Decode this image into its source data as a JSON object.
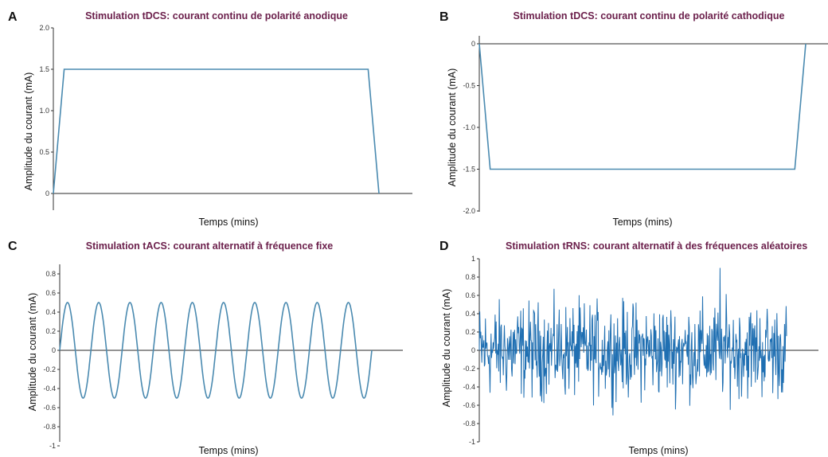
{
  "colors": {
    "title": "#6b1f4b",
    "line": "#4a8ab0",
    "noise": "#1f6fb2",
    "axis": "#333333",
    "zero": "#555555"
  },
  "chart_data": [
    {
      "letter": "A",
      "type": "line",
      "title": "Stimulation tDCS: courant continu de polarité anodique",
      "xlabel": "Temps (mins)",
      "ylabel": "Amplitude du courant (mA)",
      "ylim": [
        0,
        2.0
      ],
      "yticks": [
        "0",
        "0.5",
        "1.0",
        "1.5",
        "2.0"
      ],
      "x": [
        0,
        0.5,
        14.5,
        15
      ],
      "y": [
        0,
        1.5,
        1.5,
        0
      ]
    },
    {
      "letter": "B",
      "type": "line",
      "title": "Stimulation tDCS: courant continu de polarité cathodique",
      "xlabel": "Temps (mins)",
      "ylabel": "Amplitude du courant (mA)",
      "ylim": [
        -2.0,
        0
      ],
      "yticks": [
        "0",
        "-0.5",
        "-1.0",
        "-1.5",
        "-2.0"
      ],
      "x": [
        0,
        0.5,
        14.5,
        15
      ],
      "y": [
        0,
        -1.5,
        -1.5,
        0
      ]
    },
    {
      "letter": "C",
      "type": "line",
      "title": "Stimulation tACS: courant  alternatif à fréquence fixe",
      "xlabel": "Temps (mins)",
      "ylabel": "Amplitude du courant (mA)",
      "ylim": [
        -1,
        1
      ],
      "yticks": [
        "0.8",
        "0.6",
        "0.4",
        "0.2",
        "0",
        "-0.2",
        "-0.4",
        "-0.6",
        "-0.8",
        "-1"
      ],
      "amplitude": 0.5,
      "cycles": 10
    },
    {
      "letter": "D",
      "type": "line",
      "title": "Stimulation tRNS: courant  alternatif à des fréquences aléatoires",
      "xlabel": "Temps (mins)",
      "ylabel": "Amplitude du courant (mA)",
      "ylim": [
        -1,
        1
      ],
      "yticks": [
        "1",
        "0.8",
        "0.6",
        "0.4",
        "0.2",
        "0",
        "-0.2",
        "-0.4",
        "-0.6",
        "-0.8",
        "-1"
      ],
      "approx_range": [
        -0.8,
        0.9
      ]
    }
  ]
}
